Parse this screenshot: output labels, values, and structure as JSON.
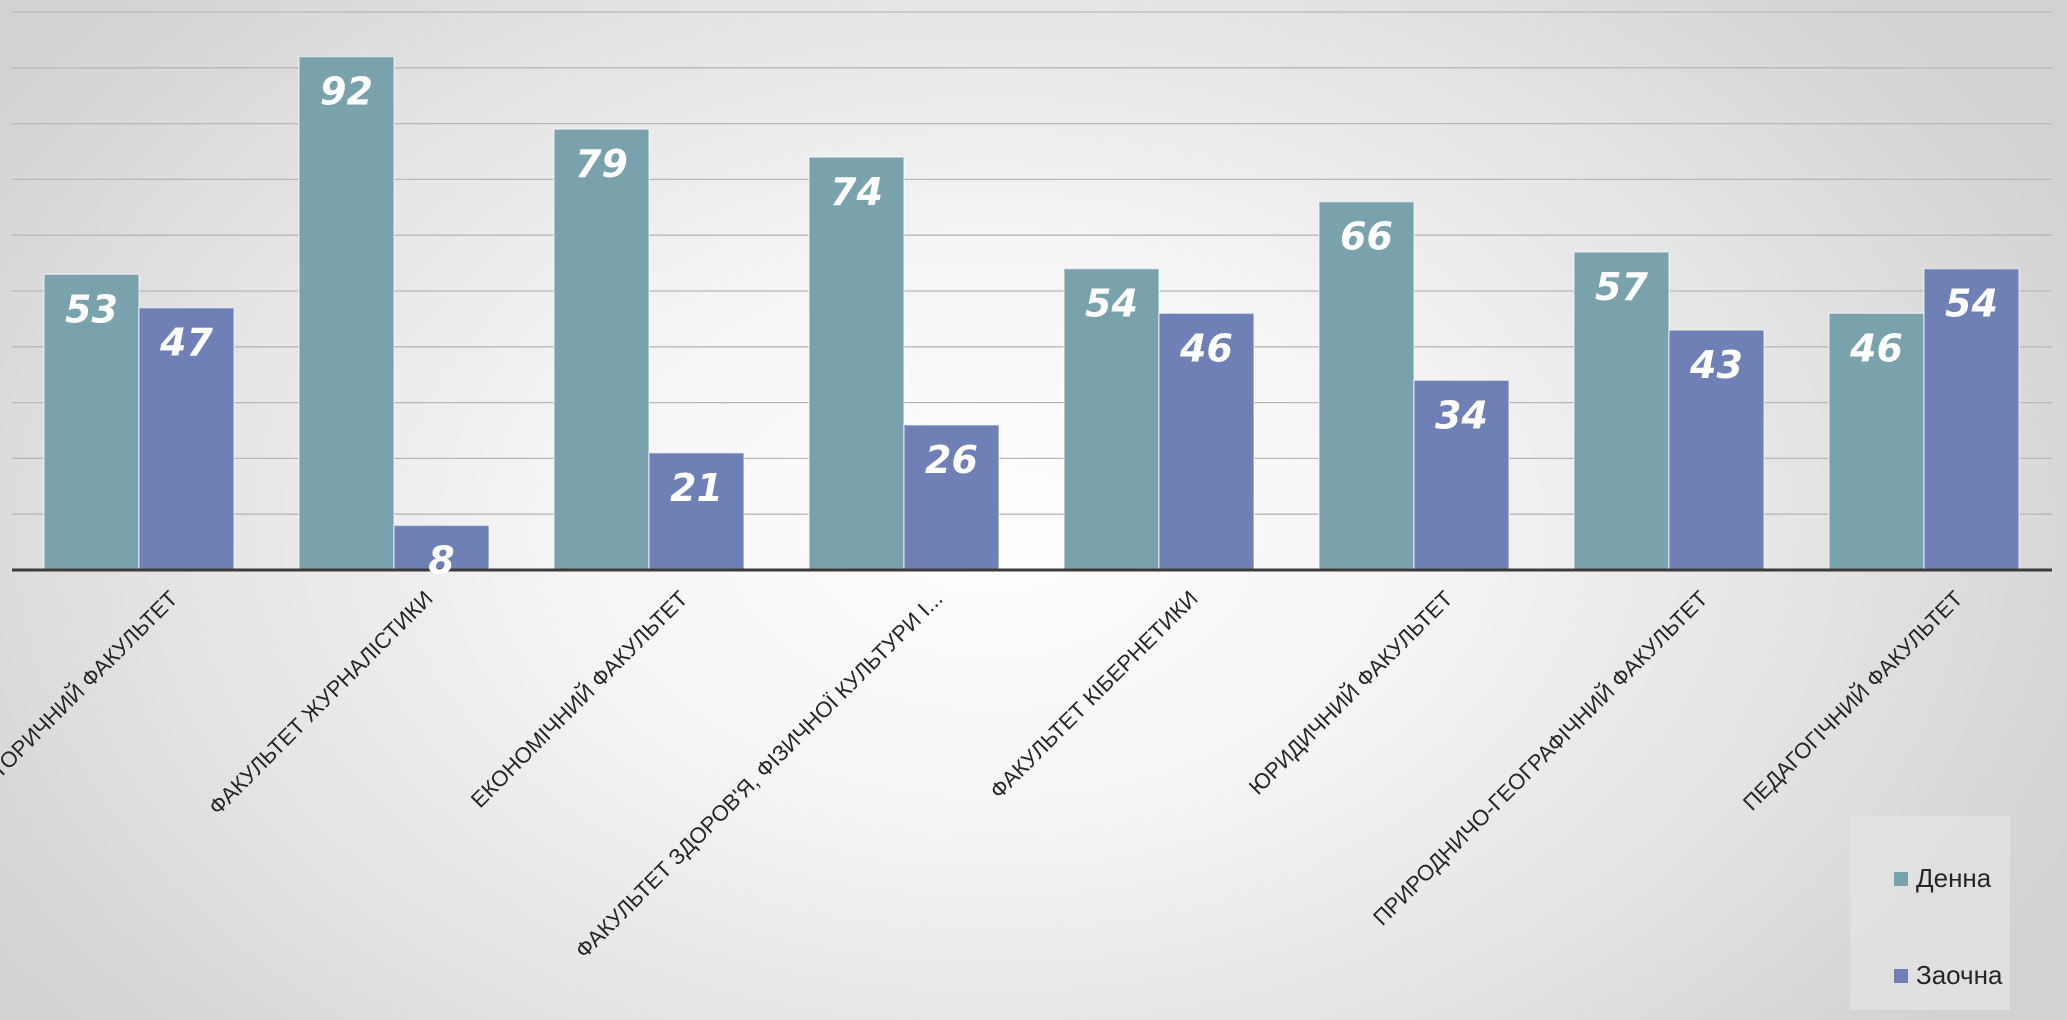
{
  "chart_data": {
    "type": "bar",
    "categories": [
      "ІСТОРИЧНИЙ ФАКУЛЬТЕТ",
      "ФАКУЛЬТЕТ ЖУРНАЛІСТИКИ",
      "ЕКОНОМІЧНИЙ ФАКУЛЬТЕТ",
      "ФАКУЛЬТЕТ ЗДОРОВ'Я, ФІЗИЧНОЇ КУЛЬТУРИ І...",
      "ФАКУЛЬТЕТ КІБЕРНЕТИКИ",
      "ЮРИДИЧНИЙ ФАКУЛЬТЕТ",
      "ПРИРОДНИЧО-ГЕОГРАФІЧНИЙ ФАКУЛЬТЕТ",
      "ПЕДАГОГІЧНИЙ ФАКУЛЬТЕТ"
    ],
    "series": [
      {
        "name": "Денна",
        "color": "#7aa2ac",
        "values": [
          53,
          92,
          79,
          74,
          54,
          66,
          57,
          46
        ]
      },
      {
        "name": "Заочна",
        "color": "#6f80b6",
        "values": [
          47,
          8,
          21,
          26,
          46,
          34,
          43,
          54
        ]
      }
    ],
    "ylim": [
      0,
      100
    ],
    "grid": true,
    "legend_position": "bottom-right",
    "data_labels": true
  }
}
